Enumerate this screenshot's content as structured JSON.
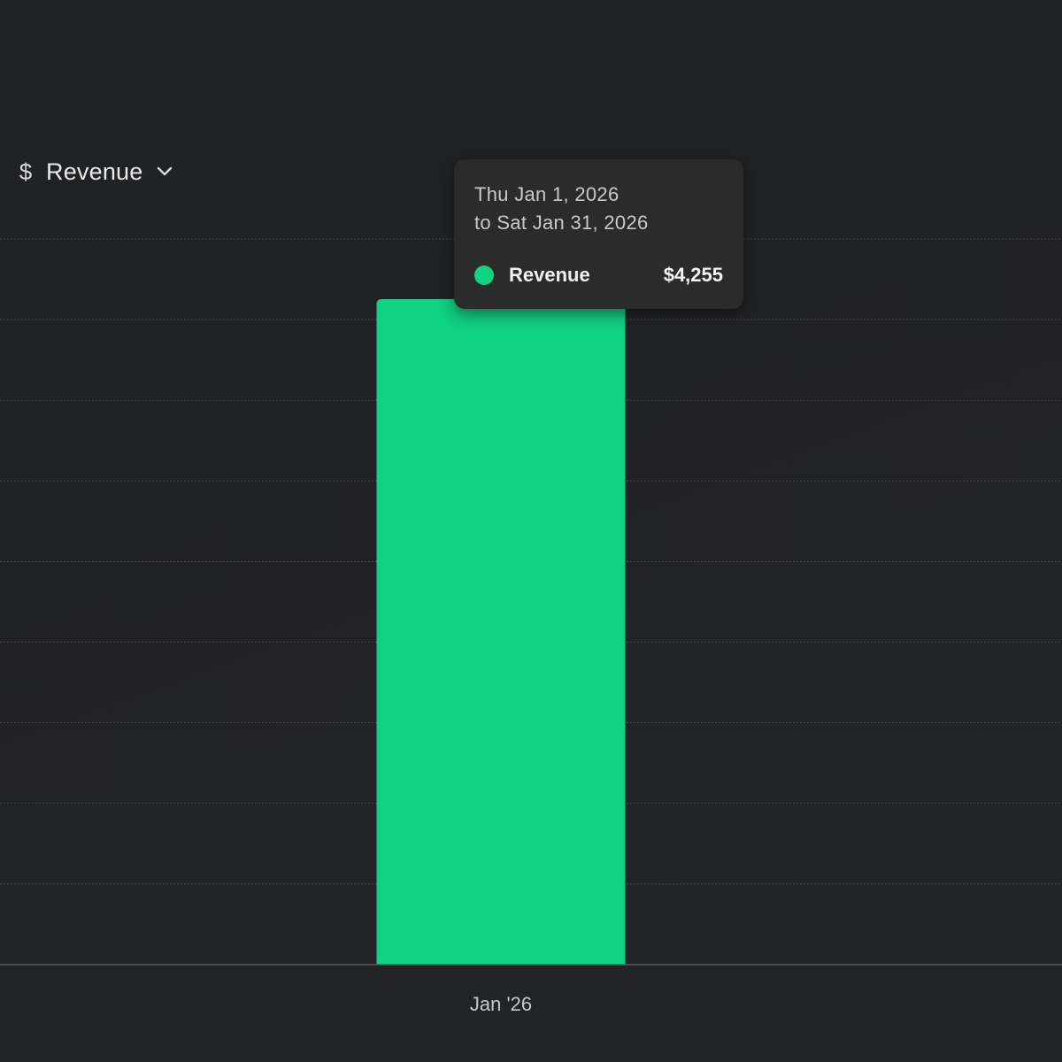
{
  "metric_selector": {
    "icon": "dollar-icon",
    "icon_glyph": "$",
    "label": "Revenue",
    "dropdown_icon": "chevron-down-icon"
  },
  "tooltip": {
    "date_line_1": "Thu Jan 1, 2026",
    "date_line_2": "to Sat Jan 31, 2026",
    "series_name": "Revenue",
    "value_label": "$4,255"
  },
  "colors": {
    "bar": "#10d283",
    "background": "#222325",
    "gridline": "#4a4a4d",
    "baseline": "#5a5a5e"
  },
  "chart_data": {
    "type": "bar",
    "categories": [
      "Jan '26"
    ],
    "series": [
      {
        "name": "Revenue",
        "values": [
          4255
        ]
      }
    ],
    "xlabel": "",
    "ylabel": "",
    "ylim": [
      0,
      4640
    ],
    "grid": true,
    "y_tick_labels_visible": false
  }
}
